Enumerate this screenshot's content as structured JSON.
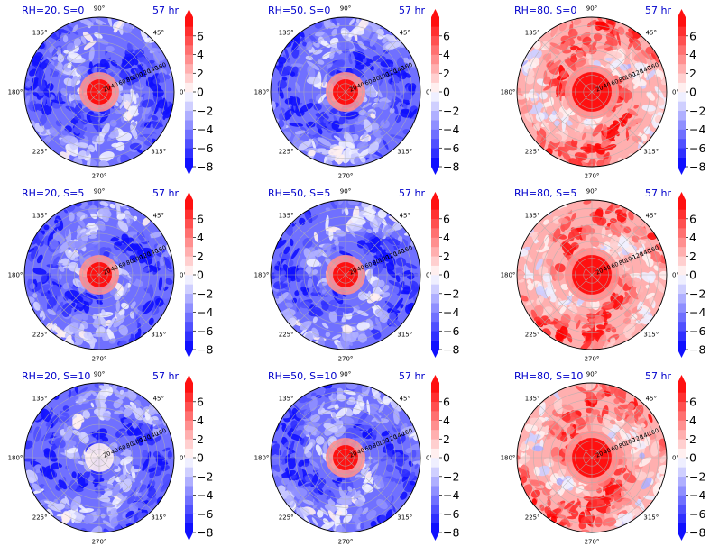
{
  "colors": {
    "panel_title": "#0000cc",
    "negative": "#0000ff",
    "positive": "#ff0000",
    "neutral": "#ffffff"
  },
  "colorbar": {
    "levels": [
      -8,
      -7,
      -6,
      -5,
      -4,
      -3,
      -2,
      -1,
      0,
      1,
      2,
      3,
      4,
      5,
      6,
      7
    ],
    "tick_labels": [
      "−8",
      "−6",
      "−4",
      "−2",
      "0",
      "2",
      "4",
      "6"
    ],
    "tick_values": [
      -8,
      -6,
      -4,
      -2,
      0,
      2,
      4,
      6
    ],
    "extend": "both"
  },
  "polar_axes": {
    "angle_labels": [
      "0°",
      "45°",
      "90°",
      "135°",
      "180°",
      "225°",
      "270°",
      "315°"
    ],
    "angle_values": [
      0,
      45,
      90,
      135,
      180,
      225,
      270,
      315
    ],
    "radius_labels": [
      "20",
      "40",
      "60",
      "80",
      "100",
      "120",
      "140",
      "160"
    ],
    "radius_values": [
      20,
      40,
      60,
      80,
      100,
      120,
      140,
      160
    ],
    "radius_max": 180
  },
  "chart_data": [
    {
      "type": "heatmap",
      "title": "RH=20, S=0",
      "time": "57 hr",
      "rh": 20,
      "shear": 0,
      "field": "polar contour",
      "vmin": -8,
      "vmax": 7,
      "center": "positive",
      "background": "negative"
    },
    {
      "type": "heatmap",
      "title": "RH=50, S=0",
      "time": "57 hr",
      "rh": 50,
      "shear": 0,
      "field": "polar contour",
      "vmin": -8,
      "vmax": 7,
      "center": "positive",
      "background": "negative"
    },
    {
      "type": "heatmap",
      "title": "RH=80, S=0",
      "time": "57 hr",
      "rh": 80,
      "shear": 0,
      "field": "polar contour",
      "vmin": -8,
      "vmax": 7,
      "center": "positive",
      "background": "positive"
    },
    {
      "type": "heatmap",
      "title": "RH=20, S=5",
      "time": "57 hr",
      "rh": 20,
      "shear": 5,
      "field": "polar contour",
      "vmin": -8,
      "vmax": 7,
      "center": "positive",
      "background": "negative"
    },
    {
      "type": "heatmap",
      "title": "RH=50, S=5",
      "time": "57 hr",
      "rh": 50,
      "shear": 5,
      "field": "polar contour",
      "vmin": -8,
      "vmax": 7,
      "center": "positive",
      "background": "negative"
    },
    {
      "type": "heatmap",
      "title": "RH=80, S=5",
      "time": "57 hr",
      "rh": 80,
      "shear": 5,
      "field": "polar contour",
      "vmin": -8,
      "vmax": 7,
      "center": "positive",
      "background": "positive"
    },
    {
      "type": "heatmap",
      "title": "RH=20, S=10",
      "time": "57 hr",
      "rh": 20,
      "shear": 10,
      "field": "polar contour",
      "vmin": -8,
      "vmax": 7,
      "center": "neutral",
      "background": "negative"
    },
    {
      "type": "heatmap",
      "title": "RH=50, S=10",
      "time": "57 hr",
      "rh": 50,
      "shear": 10,
      "field": "polar contour",
      "vmin": -8,
      "vmax": 7,
      "center": "positive",
      "background": "negative"
    },
    {
      "type": "heatmap",
      "title": "RH=80, S=10",
      "time": "57 hr",
      "rh": 80,
      "shear": 10,
      "field": "polar contour",
      "vmin": -8,
      "vmax": 7,
      "center": "positive",
      "background": "positive"
    }
  ]
}
